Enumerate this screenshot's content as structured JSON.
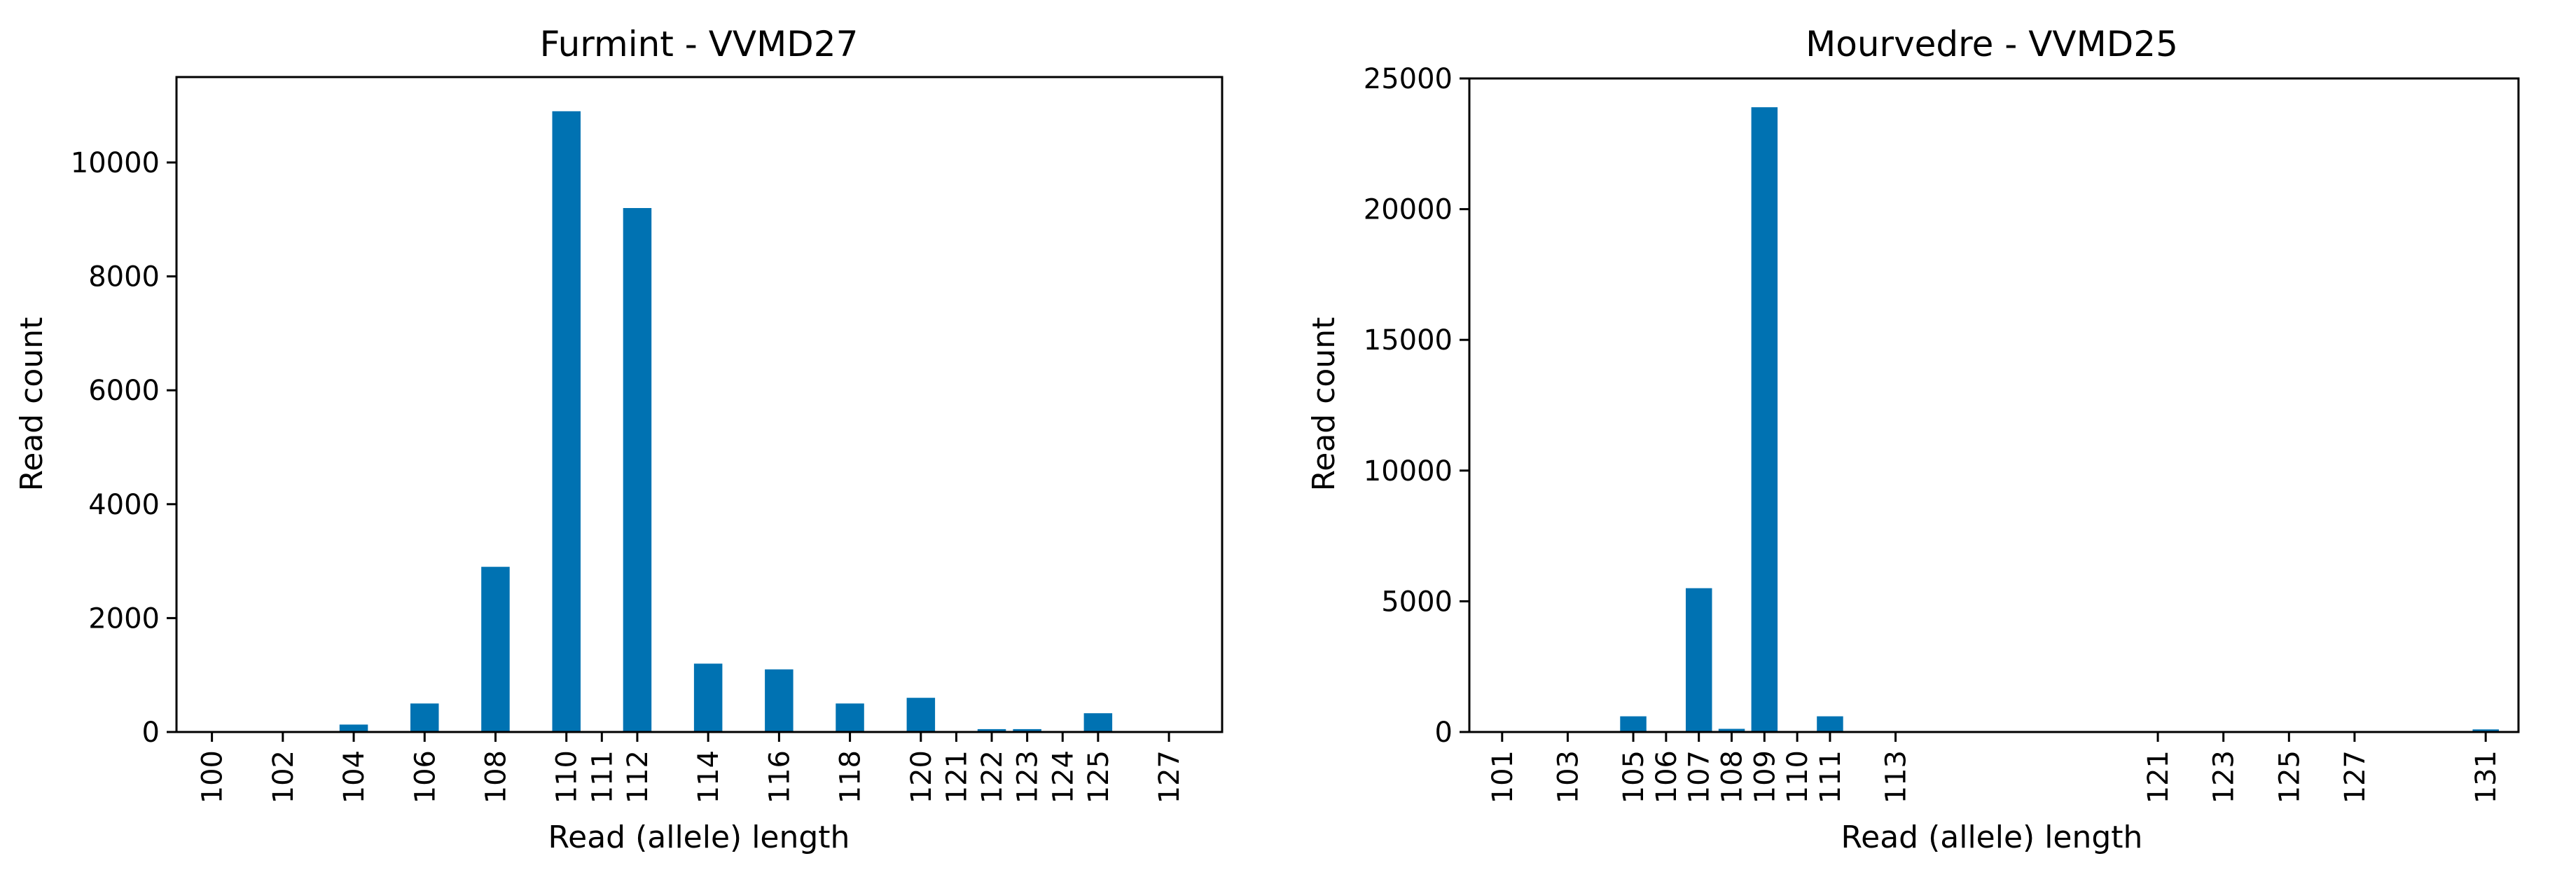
{
  "colors": {
    "bar": "#0072B2",
    "axis": "#000000",
    "background": "#ffffff"
  },
  "chart_data": [
    {
      "type": "bar",
      "title": "Furmint - VVMD27",
      "xlabel": "Read (allele) length",
      "ylabel": "Read count",
      "ylim": [
        0,
        11500
      ],
      "yticks": [
        0,
        2000,
        4000,
        6000,
        8000,
        10000
      ],
      "ytick_labels": [
        "0",
        "2000",
        "4000",
        "6000",
        "8000",
        "10000"
      ],
      "xlim": [
        99,
        128.5
      ],
      "xticks": [
        100,
        102,
        104,
        106,
        108,
        110,
        111,
        112,
        114,
        116,
        118,
        120,
        121,
        122,
        123,
        124,
        125,
        127
      ],
      "xtick_labels": [
        "100",
        "102",
        "104",
        "106",
        "108",
        "110",
        "111",
        "112",
        "114",
        "116",
        "118",
        "120",
        "121",
        "122",
        "123",
        "124",
        "125",
        "127"
      ],
      "x": [
        100,
        102,
        104,
        106,
        108,
        110,
        111,
        112,
        114,
        116,
        118,
        120,
        121,
        122,
        123,
        124,
        125,
        127
      ],
      "values": [
        5,
        5,
        130,
        500,
        2900,
        10900,
        5,
        9200,
        1200,
        1100,
        500,
        600,
        5,
        50,
        50,
        5,
        330,
        5
      ],
      "grid": false,
      "legend": "none"
    },
    {
      "type": "bar",
      "title": "Mourvedre - VVMD25",
      "xlabel": "Read (allele) length",
      "ylabel": "Read count",
      "ylim": [
        0,
        25000
      ],
      "yticks": [
        0,
        5000,
        10000,
        15000,
        20000,
        25000
      ],
      "ytick_labels": [
        "0",
        "5000",
        "10000",
        "15000",
        "20000",
        "25000"
      ],
      "xlim": [
        100,
        132
      ],
      "xticks": [
        101,
        103,
        105,
        106,
        107,
        108,
        109,
        110,
        111,
        113,
        121,
        123,
        125,
        127,
        131
      ],
      "xtick_labels": [
        "101",
        "103",
        "105",
        "106",
        "107",
        "108",
        "109",
        "110",
        "111",
        "113",
        "121",
        "123",
        "125",
        "127",
        "131"
      ],
      "x": [
        101,
        103,
        105,
        106,
        107,
        108,
        109,
        110,
        111,
        113,
        121,
        123,
        125,
        127,
        131
      ],
      "values": [
        5,
        5,
        600,
        5,
        5500,
        120,
        23900,
        5,
        600,
        5,
        5,
        5,
        5,
        5,
        100
      ],
      "grid": false,
      "legend": "none"
    }
  ]
}
